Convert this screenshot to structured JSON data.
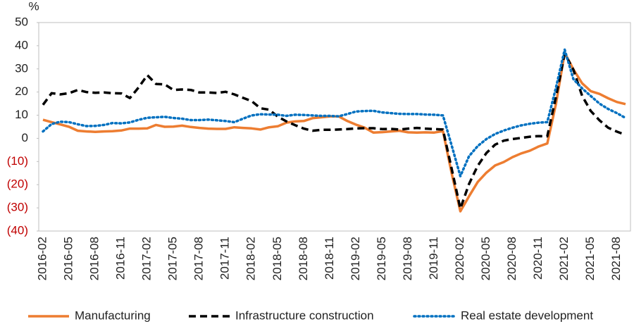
{
  "chart_data": {
    "type": "line",
    "y_label": "%",
    "categories": [
      "2016-02",
      null,
      null,
      "2016-05",
      null,
      null,
      "2016-08",
      null,
      null,
      "2016-11",
      null,
      null,
      "2017-02",
      null,
      null,
      "2017-05",
      null,
      null,
      "2017-08",
      null,
      null,
      "2017-11",
      null,
      null,
      "2018-02",
      null,
      null,
      "2018-05",
      null,
      null,
      "2018-08",
      null,
      null,
      "2018-11",
      null,
      null,
      "2019-02",
      null,
      null,
      "2019-05",
      null,
      null,
      "2019-08",
      null,
      null,
      "2019-11",
      null,
      null,
      "2020-02",
      null,
      null,
      "2020-05",
      null,
      null,
      "2020-08",
      null,
      null,
      "2020-11",
      null,
      null,
      "2021-02",
      null,
      null,
      "2021-05",
      null,
      null,
      "2021-08",
      null
    ],
    "series": [
      {
        "name": "Manufacturing",
        "color": "#ed7d31",
        "dash": "solid",
        "values": [
          8,
          7,
          6,
          5,
          3.3,
          3,
          2.8,
          3,
          3.1,
          3.4,
          4.2,
          4.2,
          4.3,
          5.8,
          5,
          5.1,
          5.5,
          4.9,
          4.5,
          4.2,
          4.1,
          4.1,
          4.8,
          4.5,
          4.3,
          3.8,
          4.8,
          5.2,
          6.8,
          7.3,
          7.5,
          8.7,
          9.1,
          9.5,
          9.5,
          7.5,
          5.9,
          4.6,
          2.5,
          2.7,
          3,
          3.3,
          2.6,
          2.5,
          2.6,
          2.5,
          3.1,
          -15,
          -31.5,
          -25,
          -18.8,
          -14.8,
          -11.7,
          -10.2,
          -8.1,
          -6.5,
          -5.3,
          -3.5,
          -2.2,
          15,
          37,
          29.8,
          23.8,
          20.4,
          19.2,
          17.3,
          15.7,
          14.8
        ]
      },
      {
        "name": "Infrastructure construction",
        "color": "#000000",
        "dash": "dashed",
        "values": [
          14.5,
          19.5,
          19,
          19.5,
          20.9,
          20,
          19.7,
          19.8,
          19.5,
          19.4,
          17.4,
          22,
          27.3,
          23.5,
          23.3,
          20.9,
          21.1,
          20.9,
          19.8,
          19.8,
          19.6,
          20.1,
          19,
          17.5,
          16.1,
          13,
          12.4,
          9.4,
          7.3,
          5.7,
          4.2,
          3.3,
          3.7,
          3.7,
          3.8,
          4,
          4.3,
          4.4,
          4.4,
          4,
          4.1,
          3.8,
          4.2,
          4.5,
          4.2,
          4,
          3.8,
          -13,
          -30.3,
          -19.7,
          -11.8,
          -6.3,
          -2.7,
          -1,
          -0.3,
          0.2,
          0.7,
          1,
          0.9,
          18,
          36.6,
          29.7,
          18.4,
          11.8,
          7.8,
          4.6,
          2.9,
          1.5
        ]
      },
      {
        "name": "Real estate development",
        "color": "#0070c0",
        "dash": "dotted",
        "values": [
          3,
          6.2,
          7.2,
          7,
          6.1,
          5.3,
          5.4,
          5.8,
          6.6,
          6.5,
          6.9,
          8,
          8.9,
          9.1,
          9.3,
          8.8,
          8.5,
          7.9,
          7.9,
          8.1,
          7.8,
          7.5,
          7,
          8.5,
          9.9,
          10.4,
          10.3,
          10.2,
          9.7,
          10.2,
          10.1,
          9.9,
          9.7,
          9.7,
          9.5,
          10.5,
          11.6,
          11.8,
          11.9,
          11.2,
          10.9,
          10.6,
          10.5,
          10.5,
          10.3,
          10.2,
          9.9,
          -3,
          -16.3,
          -7.7,
          -3.3,
          -0.3,
          1.9,
          3.4,
          4.6,
          5.6,
          6.3,
          6.8,
          7,
          22,
          38.3,
          25.6,
          21.6,
          18.3,
          15,
          12.7,
          10.9,
          8.8
        ]
      }
    ],
    "ylim": [
      -40,
      50
    ],
    "yticks": [
      {
        "value": -40,
        "label": "(40)"
      },
      {
        "value": -30,
        "label": "(30)"
      },
      {
        "value": -20,
        "label": "(20)"
      },
      {
        "value": -10,
        "label": "(10)"
      },
      0,
      10,
      20,
      30,
      40,
      50
    ],
    "negative_tick_color": "#c00000",
    "grid": false,
    "legend": "bottom"
  }
}
